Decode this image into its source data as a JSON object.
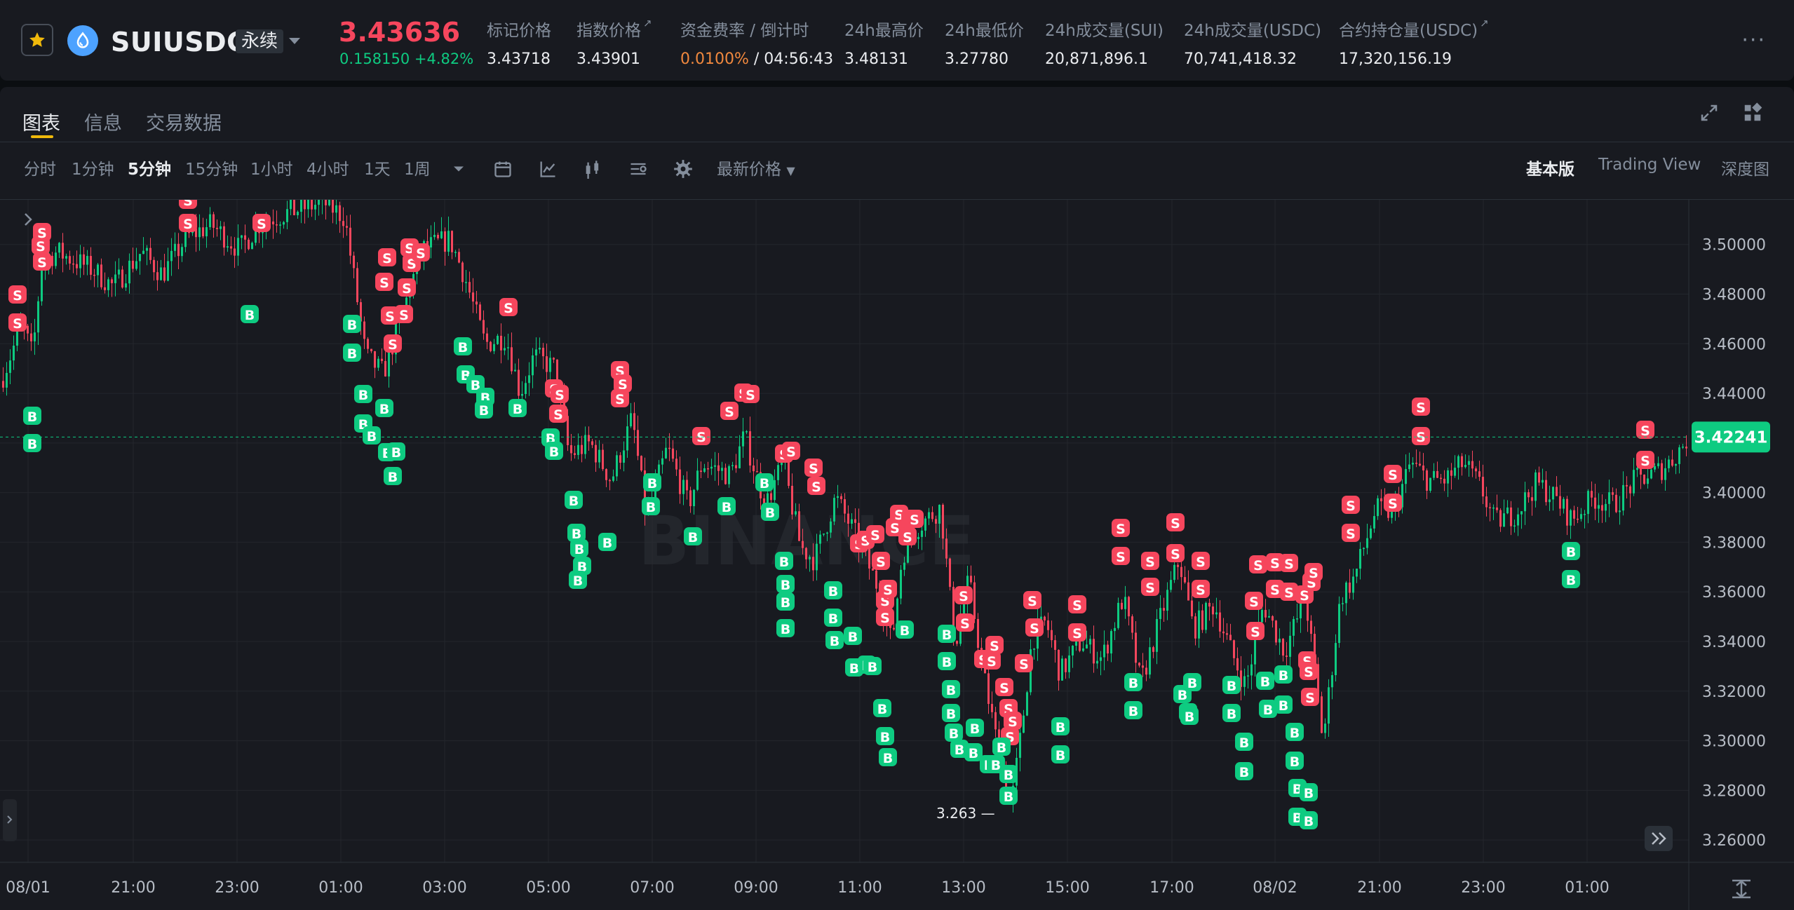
{
  "header": {
    "symbol": "SUIUSDC",
    "contract_type": "永续",
    "last_price": "3.43636",
    "change": "0.158150 +4.82%",
    "stats": [
      {
        "label": "标记价格",
        "value": "3.43718",
        "link": false
      },
      {
        "label": "指数价格",
        "value": "3.43901",
        "link": true
      },
      {
        "label": "资金费率 / 倒计时",
        "value": "0.0100%",
        "countdown": "/ 04:56:43",
        "link": false
      },
      {
        "label": "24h最高价",
        "value": "3.48131",
        "link": false
      },
      {
        "label": "24h最低价",
        "value": "3.27780",
        "link": false
      },
      {
        "label": "24h成交量(SUI)",
        "value": "20,871,896.1",
        "link": false
      },
      {
        "label": "24h成交量(USDC)",
        "value": "70,741,418.32",
        "link": false
      },
      {
        "label": "合约持仓量(USDC)",
        "value": "17,320,156.19",
        "link": true
      }
    ],
    "more_label": "···"
  },
  "tabs": [
    "图表",
    "信息",
    "交易数据"
  ],
  "toolbar": {
    "intervals": [
      "分时",
      "1分钟",
      "5分钟",
      "15分钟",
      "1小时",
      "4小时",
      "1天",
      "1周"
    ],
    "selected_interval": "5分钟",
    "price_type": "最新价格",
    "views": [
      "基本版",
      "Trading View",
      "深度图"
    ],
    "selected_view": "基本版",
    "icons": [
      "chevron-down-icon",
      "calendar-icon",
      "indicator-icon",
      "candle-type-icon",
      "layout-icon",
      "settings-icon"
    ]
  },
  "chart_data": {
    "type": "candlestick",
    "price_axis": [
      "3.50000",
      "3.48000",
      "3.46000",
      "3.44000",
      "3.42000",
      "3.40000",
      "3.38000",
      "3.36000",
      "3.34000",
      "3.32000",
      "3.30000",
      "3.28000",
      "3.26000"
    ],
    "ylim": [
      3.251,
      3.518
    ],
    "time_axis": [
      "08/01",
      "21:00",
      "23:00",
      "01:00",
      "03:00",
      "05:00",
      "07:00",
      "09:00",
      "11:00",
      "13:00",
      "15:00",
      "17:00",
      "08/02",
      "21:00",
      "23:00",
      "01:00"
    ],
    "current_price": "3.42241",
    "low_marker": "3.263",
    "up_color": "#0ecb81",
    "down_color": "#f6465d",
    "watermark": "BINANCE"
  }
}
